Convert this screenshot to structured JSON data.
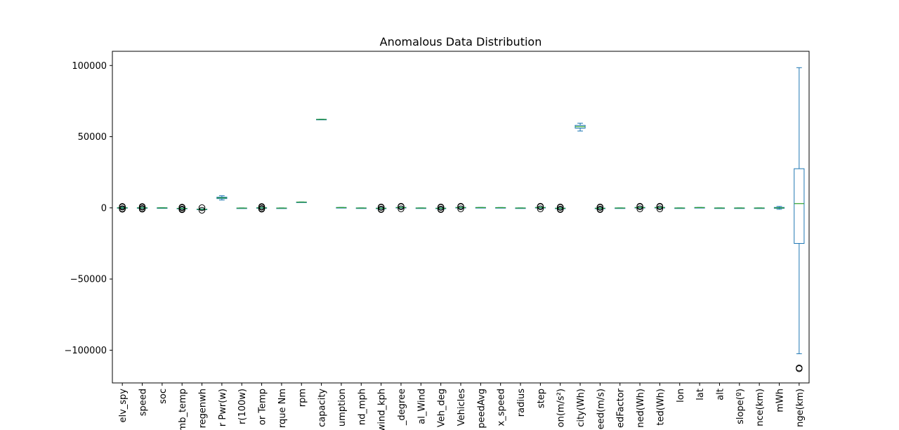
{
  "chart_data": {
    "type": "box",
    "title": "Anomalous Data Distribution",
    "xlabel": "",
    "ylabel": "",
    "ylim": [
      -123000,
      110000
    ],
    "yticks": [
      -100000,
      -50000,
      0,
      50000,
      100000
    ],
    "ytick_labels": [
      "−100000",
      "−50000",
      "0",
      "50000",
      "100000"
    ],
    "grid": false,
    "colors": {
      "box": "#1f77b4",
      "median": "#2ca02c",
      "outlier": "#000000"
    },
    "categories": [
      "elv_spy",
      "speed",
      "soc",
      "amb_temp",
      "regenwh",
      "r Pwr(w)",
      "r(100w)",
      "or Temp",
      "rque Nm",
      "rpm",
      "capacity",
      "umption",
      "nd_mph",
      "wind_kph",
      "_degree",
      "al_Wind",
      "Veh_deg",
      "Vehicles",
      "peedAvg",
      "x_speed",
      "radius",
      "step",
      "on(m/s²)",
      "city(Wh)",
      "eed(m/s)",
      "edFactor",
      "ned(Wh)",
      "ted(Wh)",
      "lon",
      "lat",
      "alt",
      "slope(º)",
      "nce(km)",
      "mWh",
      "nge(km)"
    ],
    "boxes": [
      {
        "min": -400,
        "q1": -150,
        "median": 0,
        "q3": 150,
        "max": 400,
        "outliers": [
          -1000,
          -600,
          600,
          1000
        ]
      },
      {
        "min": -300,
        "q1": -100,
        "median": 0,
        "q3": 100,
        "max": 300,
        "outliers": [
          -900,
          -500,
          500,
          900
        ]
      },
      {
        "min": -150,
        "q1": -50,
        "median": 0,
        "q3": 50,
        "max": 150,
        "outliers": []
      },
      {
        "min": -700,
        "q1": -500,
        "median": -400,
        "q3": -300,
        "max": -100,
        "outliers": [
          -1300,
          -900,
          100,
          500
        ]
      },
      {
        "min": -1300,
        "q1": -1100,
        "median": -1000,
        "q3": -900,
        "max": -700,
        "outliers": [
          -1700,
          100
        ]
      },
      {
        "min": 5500,
        "q1": 6500,
        "median": 7000,
        "q3": 7500,
        "max": 8500,
        "outliers": []
      },
      {
        "min": -300,
        "q1": -200,
        "median": -150,
        "q3": -100,
        "max": 0,
        "outliers": []
      },
      {
        "min": -300,
        "q1": -100,
        "median": 0,
        "q3": 100,
        "max": 300,
        "outliers": [
          -900,
          -500,
          500,
          900
        ]
      },
      {
        "min": -300,
        "q1": -200,
        "median": -150,
        "q3": -100,
        "max": 0,
        "outliers": []
      },
      {
        "min": 3900,
        "q1": 4000,
        "median": 4050,
        "q3": 4100,
        "max": 4200,
        "outliers": []
      },
      {
        "min": 62000,
        "q1": 62100,
        "median": 62150,
        "q3": 62200,
        "max": 62300,
        "outliers": []
      },
      {
        "min": 100,
        "q1": 150,
        "median": 200,
        "q3": 250,
        "max": 300,
        "outliers": []
      },
      {
        "min": -200,
        "q1": -150,
        "median": -100,
        "q3": -50,
        "max": 0,
        "outliers": []
      },
      {
        "min": -600,
        "q1": -400,
        "median": -300,
        "q3": -200,
        "max": 0,
        "outliers": [
          -1200,
          -900,
          300,
          600
        ]
      },
      {
        "min": -100,
        "q1": 100,
        "median": 200,
        "q3": 300,
        "max": 500,
        "outliers": [
          -700,
          800,
          1100
        ]
      },
      {
        "min": -200,
        "q1": -150,
        "median": -100,
        "q3": -50,
        "max": 0,
        "outliers": []
      },
      {
        "min": -600,
        "q1": -400,
        "median": -300,
        "q3": -200,
        "max": 0,
        "outliers": [
          -1200,
          -900,
          300,
          600
        ]
      },
      {
        "min": -100,
        "q1": 100,
        "median": 200,
        "q3": 300,
        "max": 500,
        "outliers": [
          -700,
          800,
          1100
        ]
      },
      {
        "min": 100,
        "q1": 150,
        "median": 200,
        "q3": 250,
        "max": 300,
        "outliers": []
      },
      {
        "min": 50,
        "q1": 100,
        "median": 150,
        "q3": 200,
        "max": 250,
        "outliers": []
      },
      {
        "min": -200,
        "q1": -150,
        "median": -100,
        "q3": -50,
        "max": 0,
        "outliers": []
      },
      {
        "min": -100,
        "q1": 100,
        "median": 200,
        "q3": 300,
        "max": 500,
        "outliers": [
          -700,
          800,
          1100
        ]
      },
      {
        "min": -600,
        "q1": -400,
        "median": -300,
        "q3": -200,
        "max": 0,
        "outliers": [
          -1200,
          -900,
          300,
          600
        ]
      },
      {
        "min": 54000,
        "q1": 56000,
        "median": 57000,
        "q3": 58000,
        "max": 59500,
        "outliers": []
      },
      {
        "min": -600,
        "q1": -400,
        "median": -300,
        "q3": -200,
        "max": 0,
        "outliers": [
          -1200,
          -900,
          300,
          600
        ]
      },
      {
        "min": -200,
        "q1": -150,
        "median": -100,
        "q3": -50,
        "max": 0,
        "outliers": []
      },
      {
        "min": -100,
        "q1": 100,
        "median": 200,
        "q3": 300,
        "max": 500,
        "outliers": [
          -700,
          800,
          1100
        ]
      },
      {
        "min": -100,
        "q1": 100,
        "median": 200,
        "q3": 300,
        "max": 500,
        "outliers": [
          -700,
          800,
          1100
        ]
      },
      {
        "min": -200,
        "q1": -150,
        "median": -100,
        "q3": -50,
        "max": 0,
        "outliers": []
      },
      {
        "min": 100,
        "q1": 150,
        "median": 200,
        "q3": 250,
        "max": 300,
        "outliers": []
      },
      {
        "min": -200,
        "q1": -150,
        "median": -100,
        "q3": -50,
        "max": 0,
        "outliers": []
      },
      {
        "min": -200,
        "q1": -150,
        "median": -100,
        "q3": -50,
        "max": 0,
        "outliers": []
      },
      {
        "min": -200,
        "q1": -150,
        "median": -100,
        "q3": -50,
        "max": 0,
        "outliers": []
      },
      {
        "min": -1000,
        "q1": -300,
        "median": 0,
        "q3": 300,
        "max": 1000,
        "outliers": []
      },
      {
        "min": -102500,
        "q1": -25000,
        "median": 3000,
        "q3": 27500,
        "max": 98500,
        "outliers": [
          -113000,
          -112500
        ]
      }
    ]
  }
}
